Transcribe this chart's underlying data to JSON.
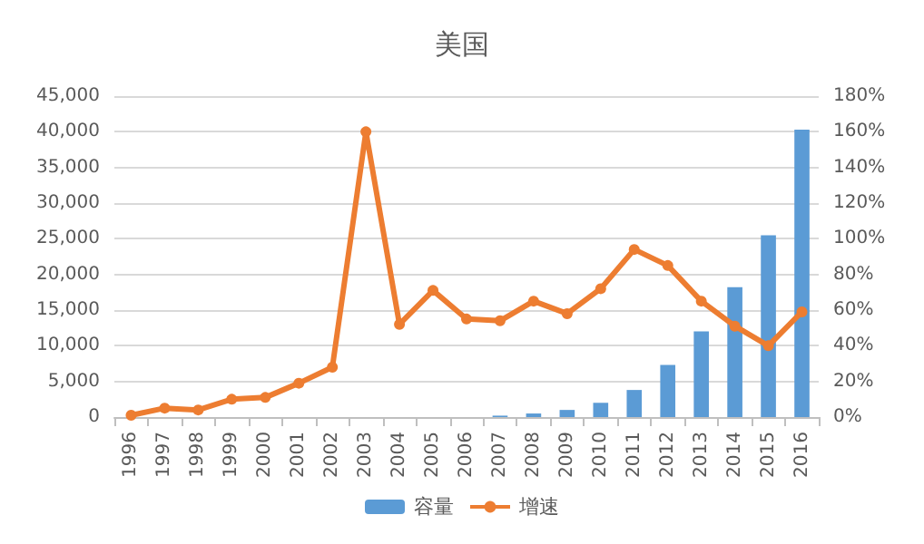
{
  "chart_data": {
    "type": "bar",
    "title": "美国",
    "categories": [
      "1996",
      "1997",
      "1998",
      "1999",
      "2000",
      "2001",
      "2002",
      "2003",
      "2004",
      "2005",
      "2006",
      "2007",
      "2008",
      "2009",
      "2010",
      "2011",
      "2012",
      "2013",
      "2014",
      "2015",
      "2016"
    ],
    "series": [
      {
        "name": "容量",
        "color": "#5b9bd5",
        "values": [
          0,
          0,
          0,
          0,
          0,
          0,
          0,
          0,
          0,
          0,
          0,
          200,
          500,
          1000,
          2000,
          3800,
          7300,
          12000,
          18200,
          25500,
          40300
        ]
      },
      {
        "name": "增速",
        "type": "line",
        "axis": "y2",
        "color": "#ed7d31",
        "marker": "circle",
        "values": [
          1,
          5,
          4,
          10,
          11,
          19,
          28,
          160,
          52,
          71,
          55,
          54,
          65,
          58,
          72,
          94,
          85,
          65,
          51,
          40,
          59
        ]
      }
    ],
    "ylim": [
      0,
      45000
    ],
    "yticks": [
      0,
      {
        "value": 5000,
        "label": "5,000"
      },
      {
        "value": 10000,
        "label": "10,000"
      },
      {
        "value": 15000,
        "label": "15,000"
      },
      {
        "value": 20000,
        "label": "20,000"
      },
      {
        "value": 25000,
        "label": "25,000"
      },
      {
        "value": 30000,
        "label": "30,000"
      },
      {
        "value": 35000,
        "label": "35,000"
      },
      {
        "value": 40000,
        "label": "40,000"
      },
      {
        "value": 45000,
        "label": "45,000"
      }
    ],
    "y2lim": [
      0,
      180
    ],
    "y2ticks": [
      {
        "value": 0,
        "label": "0%"
      },
      {
        "value": 20,
        "label": "20%"
      },
      {
        "value": 40,
        "label": "40%"
      },
      {
        "value": 60,
        "label": "60%"
      },
      {
        "value": 80,
        "label": "80%"
      },
      {
        "value": 100,
        "label": "100%"
      },
      {
        "value": 120,
        "label": "120%"
      },
      {
        "value": 140,
        "label": "140%"
      },
      {
        "value": 160,
        "label": "160%"
      },
      {
        "value": 180,
        "label": "180%"
      }
    ],
    "grid": "y",
    "legend": "bottom"
  }
}
